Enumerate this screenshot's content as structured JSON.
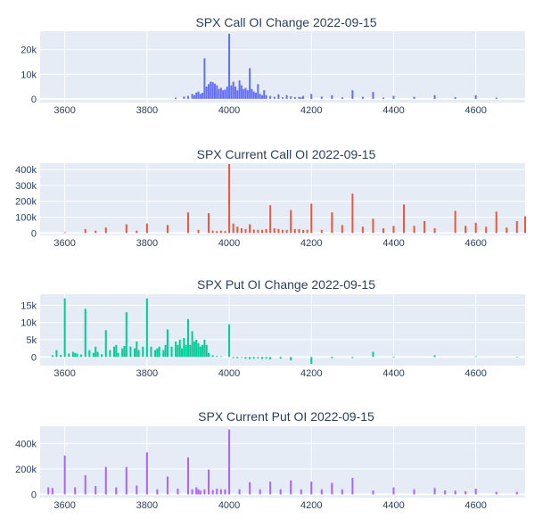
{
  "figure": {
    "background": "#ffffff",
    "plot_background": "#e5ecf6",
    "gridline_color": "#ffffff",
    "text_color": "#2a3f5f"
  },
  "chart_data": [
    {
      "type": "bar",
      "title": "SPX Call OI Change 2022-09-15",
      "color": "#636efa",
      "xlim": [
        3540,
        4720
      ],
      "ylim": [
        -1500,
        27500
      ],
      "xticks": [
        3600,
        3800,
        4000,
        4200,
        4400,
        4600
      ],
      "xtick_labels": [
        "3600",
        "3800",
        "4000",
        "4200",
        "4400",
        "4600"
      ],
      "yticks": [
        0,
        10000,
        20000
      ],
      "ytick_labels": [
        "0",
        "10k",
        "20k"
      ],
      "grid": true,
      "x": [
        3870,
        3890,
        3900,
        3910,
        3915,
        3920,
        3925,
        3930,
        3935,
        3940,
        3945,
        3950,
        3955,
        3960,
        3965,
        3970,
        3975,
        3980,
        3985,
        3990,
        3995,
        4000,
        4005,
        4010,
        4015,
        4020,
        4025,
        4030,
        4035,
        4040,
        4045,
        4050,
        4055,
        4060,
        4065,
        4070,
        4075,
        4080,
        4085,
        4090,
        4100,
        4110,
        4120,
        4130,
        4140,
        4150,
        4160,
        4170,
        4175,
        4180,
        4200,
        4225,
        4250,
        4275,
        4300,
        4325,
        4350,
        4375,
        4400,
        4450,
        4500,
        4550,
        4600,
        4650
      ],
      "values": [
        500,
        900,
        1200,
        2000,
        1500,
        2500,
        3000,
        2000,
        2500,
        16500,
        5000,
        6000,
        7000,
        6800,
        6200,
        5500,
        4000,
        4500,
        3500,
        3800,
        5000,
        26500,
        5500,
        7000,
        5000,
        3500,
        7500,
        5500,
        4000,
        4500,
        3500,
        12500,
        4000,
        3000,
        2500,
        6000,
        2000,
        1500,
        3500,
        1500,
        1200,
        800,
        1800,
        600,
        1500,
        1000,
        700,
        800,
        600,
        1200,
        2000,
        900,
        1500,
        600,
        3500,
        800,
        2800,
        500,
        1200,
        800,
        1500,
        700,
        1500,
        500
      ]
    },
    {
      "type": "bar",
      "title": "SPX Current Call OI 2022-09-15",
      "color": "#ef553b",
      "xlim": [
        3540,
        4720
      ],
      "ylim": [
        -15000,
        440000
      ],
      "xticks": [
        3600,
        3800,
        4000,
        4200,
        4400,
        4600
      ],
      "xtick_labels": [
        "3600",
        "3800",
        "4000",
        "4200",
        "4400",
        "4600"
      ],
      "yticks": [
        0,
        100000,
        200000,
        300000,
        400000
      ],
      "ytick_labels": [
        "0",
        "100k",
        "200k",
        "300k",
        "400k"
      ],
      "grid": true,
      "x": [
        3600,
        3650,
        3675,
        3700,
        3750,
        3775,
        3800,
        3850,
        3900,
        3925,
        3950,
        3960,
        3970,
        3980,
        3990,
        4000,
        4010,
        4020,
        4030,
        4040,
        4050,
        4060,
        4070,
        4080,
        4090,
        4100,
        4110,
        4120,
        4130,
        4140,
        4150,
        4160,
        4170,
        4180,
        4190,
        4200,
        4225,
        4250,
        4275,
        4300,
        4325,
        4350,
        4375,
        4400,
        4425,
        4450,
        4475,
        4500,
        4550,
        4575,
        4600,
        4625,
        4650,
        4675,
        4700,
        4720
      ],
      "values": [
        5000,
        25000,
        15000,
        35000,
        55000,
        15000,
        60000,
        50000,
        130000,
        20000,
        125000,
        15000,
        12000,
        15000,
        12000,
        435000,
        60000,
        40000,
        30000,
        25000,
        55000,
        22000,
        20000,
        20000,
        25000,
        175000,
        30000,
        25000,
        20000,
        20000,
        145000,
        25000,
        25000,
        20000,
        20000,
        185000,
        20000,
        130000,
        50000,
        248000,
        40000,
        90000,
        30000,
        45000,
        180000,
        45000,
        75000,
        30000,
        140000,
        45000,
        65000,
        40000,
        135000,
        35000,
        75000,
        105000
      ]
    },
    {
      "type": "bar",
      "title": "SPX Put OI Change 2022-09-15",
      "color": "#00cc96",
      "xlim": [
        3540,
        4720
      ],
      "ylim": [
        -2500,
        18200
      ],
      "xticks": [
        3600,
        3800,
        4000,
        4200,
        4400,
        4600
      ],
      "xtick_labels": [
        "3600",
        "3800",
        "4000",
        "4200",
        "4400",
        "4600"
      ],
      "yticks": [
        0,
        5000,
        10000,
        15000
      ],
      "ytick_labels": [
        "0",
        "5k",
        "10k",
        "15k"
      ],
      "grid": true,
      "x": [
        3570,
        3580,
        3590,
        3600,
        3610,
        3620,
        3625,
        3630,
        3640,
        3650,
        3660,
        3670,
        3675,
        3680,
        3690,
        3700,
        3710,
        3720,
        3725,
        3730,
        3740,
        3745,
        3750,
        3760,
        3770,
        3775,
        3780,
        3790,
        3800,
        3810,
        3820,
        3825,
        3830,
        3840,
        3845,
        3850,
        3860,
        3870,
        3875,
        3880,
        3885,
        3890,
        3895,
        3900,
        3905,
        3910,
        3915,
        3920,
        3925,
        3930,
        3935,
        3940,
        3945,
        3950,
        3960,
        3970,
        3980,
        4000,
        4010,
        4020,
        4030,
        4040,
        4050,
        4060,
        4070,
        4080,
        4090,
        4100,
        4125,
        4150,
        4200,
        4250,
        4300,
        4350,
        4400,
        4500,
        4600,
        4700
      ],
      "values": [
        500,
        2000,
        600,
        17000,
        1000,
        1500,
        1200,
        1000,
        700,
        14000,
        2000,
        1200,
        3000,
        1500,
        800,
        7800,
        2000,
        3000,
        3500,
        1200,
        2500,
        3200,
        13000,
        3000,
        2500,
        4500,
        2000,
        3000,
        17000,
        3000,
        2000,
        2500,
        3000,
        2000,
        3500,
        8000,
        3000,
        4500,
        3500,
        5000,
        2500,
        5500,
        3500,
        11000,
        3500,
        7500,
        4500,
        5000,
        4000,
        3000,
        3500,
        5000,
        3500,
        1200,
        500,
        300,
        200,
        9500,
        -300,
        -400,
        -200,
        -500,
        -600,
        -500,
        -400,
        -600,
        -500,
        -700,
        -500,
        -1000,
        -2000,
        -400,
        -300,
        1500,
        -200,
        500,
        200,
        100
      ]
    },
    {
      "type": "bar",
      "title": "SPX Current Put OI 2022-09-15",
      "color": "#ab63fa",
      "xlim": [
        3540,
        4720
      ],
      "ylim": [
        -25000,
        535000
      ],
      "xticks": [
        3600,
        3800,
        4000,
        4200,
        4400,
        4600
      ],
      "xtick_labels": [
        "3600",
        "3800",
        "4000",
        "4200",
        "4400",
        "4600"
      ],
      "yticks": [
        0,
        200000,
        400000
      ],
      "ytick_labels": [
        "0",
        "200k",
        "400k"
      ],
      "grid": true,
      "x": [
        3560,
        3570,
        3600,
        3625,
        3650,
        3675,
        3700,
        3725,
        3750,
        3775,
        3800,
        3825,
        3850,
        3875,
        3900,
        3910,
        3920,
        3925,
        3930,
        3940,
        3950,
        3960,
        3970,
        3980,
        3990,
        4000,
        4025,
        4050,
        4075,
        4100,
        4125,
        4150,
        4175,
        4200,
        4225,
        4250,
        4275,
        4300,
        4350,
        4400,
        4450,
        4500,
        4525,
        4550,
        4575,
        4600,
        4650,
        4700
      ],
      "values": [
        55000,
        50000,
        305000,
        55000,
        150000,
        65000,
        215000,
        55000,
        215000,
        70000,
        330000,
        40000,
        140000,
        45000,
        290000,
        40000,
        55000,
        40000,
        30000,
        40000,
        195000,
        35000,
        45000,
        40000,
        40000,
        510000,
        40000,
        95000,
        40000,
        100000,
        40000,
        110000,
        40000,
        100000,
        40000,
        90000,
        40000,
        130000,
        30000,
        55000,
        40000,
        50000,
        30000,
        30000,
        25000,
        45000,
        20000,
        20000
      ]
    }
  ]
}
